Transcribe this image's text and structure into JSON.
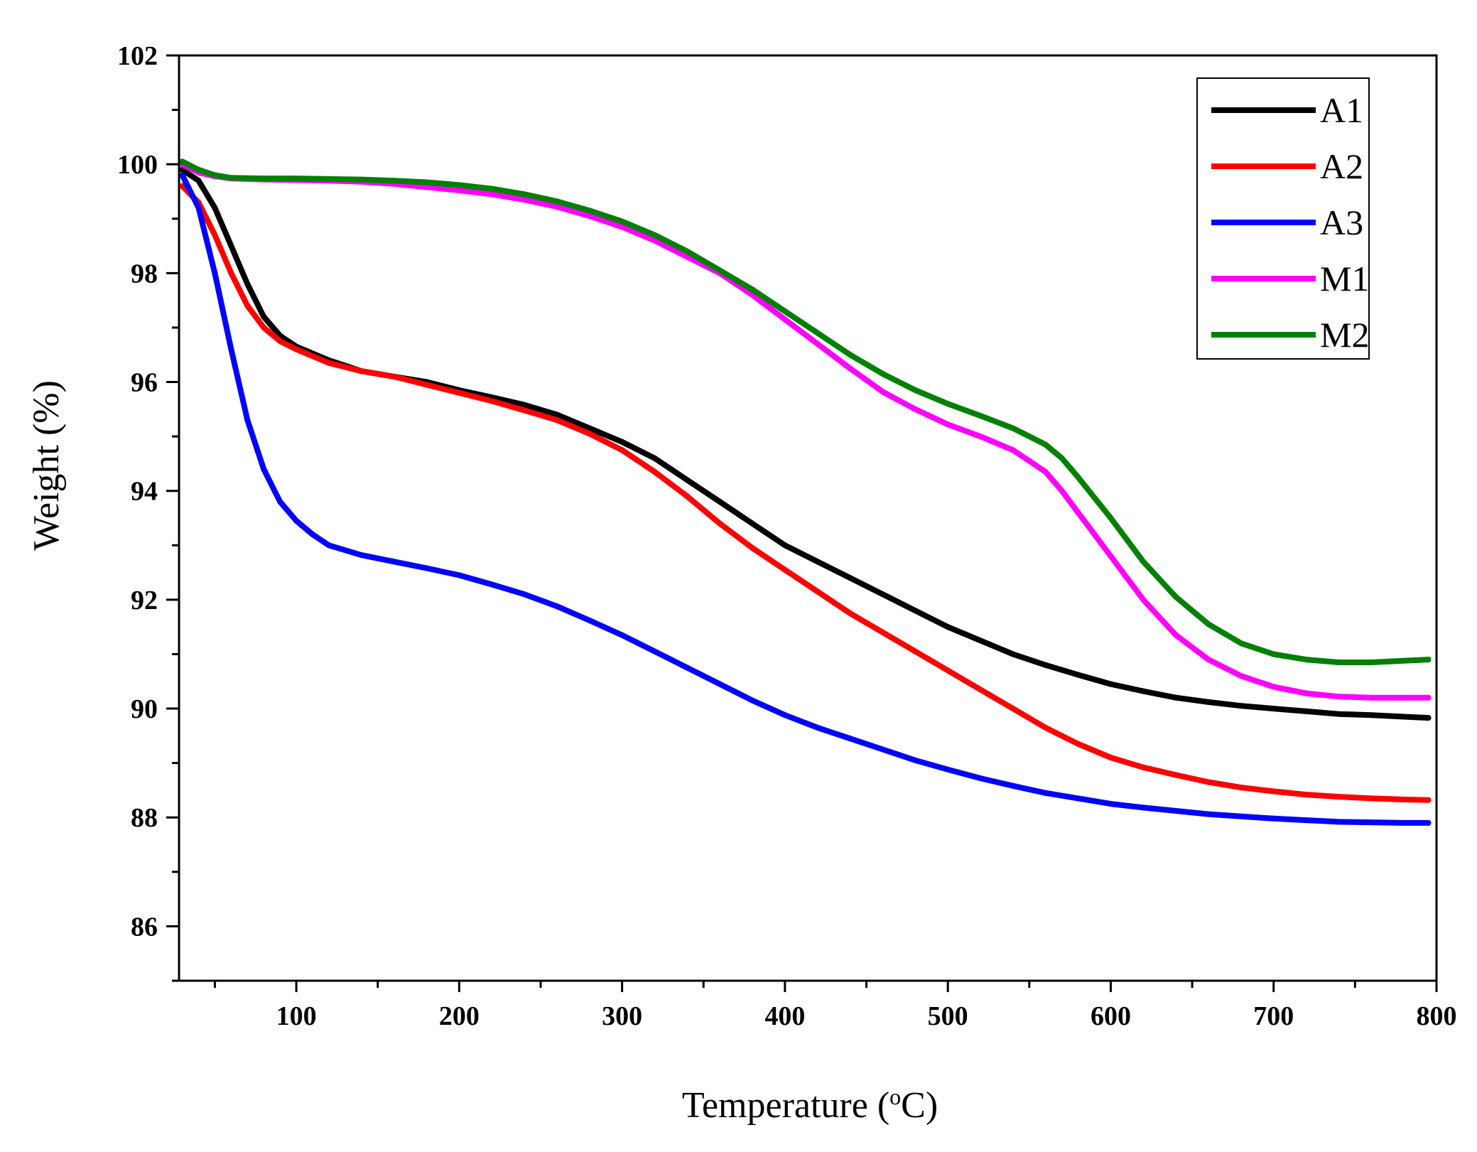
{
  "chart_data": {
    "type": "line",
    "title": "",
    "xlabel_main": "Temperature (",
    "xlabel_sup": "o",
    "xlabel_end": "C)",
    "ylabel": "Weight (%)",
    "xlim": [
      28,
      800
    ],
    "ylim": [
      85,
      102
    ],
    "xticks": [
      100,
      200,
      300,
      400,
      500,
      600,
      700,
      800
    ],
    "yticks": [
      86,
      88,
      90,
      92,
      94,
      96,
      98,
      100,
      102
    ],
    "xtick_labels": [
      "100",
      "200",
      "300",
      "400",
      "500",
      "600",
      "700",
      "800"
    ],
    "ytick_labels": [
      "86",
      "88",
      "90",
      "92",
      "94",
      "96",
      "98",
      "100",
      "102"
    ],
    "legend_position": "top-right",
    "series": [
      {
        "name": "A1",
        "color": "#000000",
        "points": [
          [
            30,
            99.9
          ],
          [
            40,
            99.7
          ],
          [
            50,
            99.2
          ],
          [
            60,
            98.5
          ],
          [
            70,
            97.8
          ],
          [
            80,
            97.2
          ],
          [
            90,
            96.85
          ],
          [
            100,
            96.65
          ],
          [
            120,
            96.4
          ],
          [
            140,
            96.2
          ],
          [
            160,
            96.1
          ],
          [
            180,
            96.0
          ],
          [
            200,
            95.85
          ],
          [
            220,
            95.72
          ],
          [
            240,
            95.58
          ],
          [
            260,
            95.4
          ],
          [
            280,
            95.15
          ],
          [
            300,
            94.9
          ],
          [
            320,
            94.6
          ],
          [
            340,
            94.2
          ],
          [
            360,
            93.8
          ],
          [
            380,
            93.4
          ],
          [
            400,
            93.0
          ],
          [
            420,
            92.7
          ],
          [
            440,
            92.4
          ],
          [
            460,
            92.1
          ],
          [
            480,
            91.8
          ],
          [
            500,
            91.5
          ],
          [
            520,
            91.25
          ],
          [
            540,
            91.0
          ],
          [
            560,
            90.8
          ],
          [
            580,
            90.62
          ],
          [
            600,
            90.45
          ],
          [
            620,
            90.32
          ],
          [
            640,
            90.2
          ],
          [
            660,
            90.12
          ],
          [
            680,
            90.05
          ],
          [
            700,
            90.0
          ],
          [
            720,
            89.95
          ],
          [
            740,
            89.9
          ],
          [
            760,
            89.88
          ],
          [
            780,
            89.85
          ],
          [
            795,
            89.83
          ]
        ]
      },
      {
        "name": "A2",
        "color": "#ff0000",
        "points": [
          [
            30,
            99.6
          ],
          [
            40,
            99.3
          ],
          [
            50,
            98.7
          ],
          [
            60,
            98.0
          ],
          [
            70,
            97.4
          ],
          [
            80,
            97.0
          ],
          [
            90,
            96.75
          ],
          [
            100,
            96.6
          ],
          [
            120,
            96.35
          ],
          [
            140,
            96.2
          ],
          [
            160,
            96.1
          ],
          [
            180,
            95.95
          ],
          [
            200,
            95.8
          ],
          [
            220,
            95.65
          ],
          [
            240,
            95.48
          ],
          [
            260,
            95.3
          ],
          [
            280,
            95.05
          ],
          [
            300,
            94.75
          ],
          [
            320,
            94.35
          ],
          [
            340,
            93.9
          ],
          [
            360,
            93.4
          ],
          [
            380,
            92.95
          ],
          [
            400,
            92.55
          ],
          [
            420,
            92.15
          ],
          [
            440,
            91.75
          ],
          [
            460,
            91.4
          ],
          [
            480,
            91.05
          ],
          [
            500,
            90.7
          ],
          [
            520,
            90.35
          ],
          [
            540,
            90.0
          ],
          [
            560,
            89.65
          ],
          [
            580,
            89.35
          ],
          [
            600,
            89.1
          ],
          [
            620,
            88.92
          ],
          [
            640,
            88.78
          ],
          [
            660,
            88.65
          ],
          [
            680,
            88.55
          ],
          [
            700,
            88.48
          ],
          [
            720,
            88.42
          ],
          [
            740,
            88.38
          ],
          [
            760,
            88.35
          ],
          [
            780,
            88.33
          ],
          [
            795,
            88.32
          ]
        ]
      },
      {
        "name": "A3",
        "color": "#0000ff",
        "points": [
          [
            30,
            99.8
          ],
          [
            40,
            99.2
          ],
          [
            50,
            98.0
          ],
          [
            60,
            96.6
          ],
          [
            70,
            95.3
          ],
          [
            80,
            94.4
          ],
          [
            90,
            93.8
          ],
          [
            100,
            93.45
          ],
          [
            110,
            93.2
          ],
          [
            120,
            93.0
          ],
          [
            140,
            92.82
          ],
          [
            160,
            92.7
          ],
          [
            180,
            92.58
          ],
          [
            200,
            92.45
          ],
          [
            220,
            92.28
          ],
          [
            240,
            92.1
          ],
          [
            260,
            91.88
          ],
          [
            280,
            91.62
          ],
          [
            300,
            91.35
          ],
          [
            320,
            91.05
          ],
          [
            340,
            90.75
          ],
          [
            360,
            90.45
          ],
          [
            380,
            90.15
          ],
          [
            400,
            89.88
          ],
          [
            420,
            89.65
          ],
          [
            440,
            89.45
          ],
          [
            460,
            89.25
          ],
          [
            480,
            89.05
          ],
          [
            500,
            88.88
          ],
          [
            520,
            88.72
          ],
          [
            540,
            88.58
          ],
          [
            560,
            88.45
          ],
          [
            580,
            88.35
          ],
          [
            600,
            88.25
          ],
          [
            620,
            88.18
          ],
          [
            640,
            88.12
          ],
          [
            660,
            88.06
          ],
          [
            680,
            88.02
          ],
          [
            700,
            87.98
          ],
          [
            720,
            87.95
          ],
          [
            740,
            87.92
          ],
          [
            760,
            87.91
          ],
          [
            780,
            87.9
          ],
          [
            795,
            87.9
          ]
        ]
      },
      {
        "name": "M1",
        "color": "#ff00ff",
        "points": [
          [
            30,
            100.0
          ],
          [
            40,
            99.85
          ],
          [
            50,
            99.78
          ],
          [
            60,
            99.74
          ],
          [
            80,
            99.72
          ],
          [
            100,
            99.71
          ],
          [
            120,
            99.7
          ],
          [
            140,
            99.68
          ],
          [
            160,
            99.64
          ],
          [
            180,
            99.58
          ],
          [
            200,
            99.52
          ],
          [
            220,
            99.45
          ],
          [
            240,
            99.35
          ],
          [
            260,
            99.22
          ],
          [
            280,
            99.05
          ],
          [
            300,
            98.85
          ],
          [
            320,
            98.6
          ],
          [
            340,
            98.3
          ],
          [
            360,
            98.0
          ],
          [
            380,
            97.6
          ],
          [
            400,
            97.15
          ],
          [
            420,
            96.7
          ],
          [
            440,
            96.25
          ],
          [
            460,
            95.82
          ],
          [
            480,
            95.5
          ],
          [
            500,
            95.22
          ],
          [
            520,
            95.0
          ],
          [
            540,
            94.75
          ],
          [
            560,
            94.35
          ],
          [
            570,
            94.0
          ],
          [
            580,
            93.6
          ],
          [
            600,
            92.8
          ],
          [
            620,
            92.0
          ],
          [
            640,
            91.35
          ],
          [
            660,
            90.9
          ],
          [
            680,
            90.6
          ],
          [
            700,
            90.4
          ],
          [
            720,
            90.28
          ],
          [
            740,
            90.22
          ],
          [
            760,
            90.2
          ],
          [
            780,
            90.2
          ],
          [
            795,
            90.2
          ]
        ]
      },
      {
        "name": "M2",
        "color": "#008000",
        "points": [
          [
            30,
            100.05
          ],
          [
            40,
            99.9
          ],
          [
            50,
            99.8
          ],
          [
            60,
            99.75
          ],
          [
            80,
            99.74
          ],
          [
            100,
            99.74
          ],
          [
            120,
            99.73
          ],
          [
            140,
            99.72
          ],
          [
            160,
            99.7
          ],
          [
            180,
            99.67
          ],
          [
            200,
            99.62
          ],
          [
            220,
            99.55
          ],
          [
            240,
            99.45
          ],
          [
            260,
            99.32
          ],
          [
            280,
            99.15
          ],
          [
            300,
            98.95
          ],
          [
            320,
            98.7
          ],
          [
            340,
            98.4
          ],
          [
            360,
            98.05
          ],
          [
            380,
            97.7
          ],
          [
            400,
            97.3
          ],
          [
            420,
            96.9
          ],
          [
            440,
            96.5
          ],
          [
            460,
            96.15
          ],
          [
            480,
            95.85
          ],
          [
            500,
            95.6
          ],
          [
            520,
            95.38
          ],
          [
            540,
            95.15
          ],
          [
            560,
            94.85
          ],
          [
            570,
            94.6
          ],
          [
            580,
            94.25
          ],
          [
            600,
            93.5
          ],
          [
            620,
            92.7
          ],
          [
            640,
            92.05
          ],
          [
            660,
            91.55
          ],
          [
            680,
            91.2
          ],
          [
            700,
            91.0
          ],
          [
            720,
            90.9
          ],
          [
            740,
            90.85
          ],
          [
            760,
            90.85
          ],
          [
            780,
            90.88
          ],
          [
            795,
            90.9
          ]
        ]
      }
    ]
  }
}
